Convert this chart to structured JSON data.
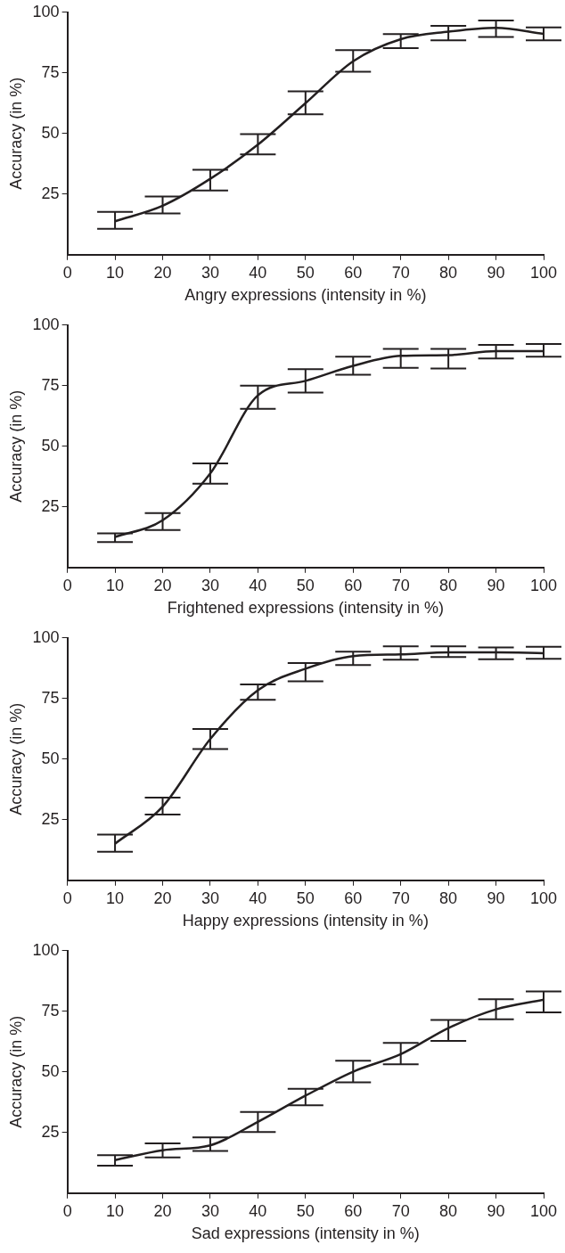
{
  "chart_data": [
    {
      "type": "line",
      "xlabel": "Angry expressions (intensity in %)",
      "ylabel": "Accuracy (in %)",
      "x": [
        10,
        20,
        30,
        40,
        50,
        60,
        70,
        80,
        90,
        100
      ],
      "xlim": [
        0,
        100
      ],
      "xticks": [
        0,
        10,
        20,
        30,
        40,
        50,
        60,
        70,
        80,
        90,
        100
      ],
      "ylim": [
        0,
        100
      ],
      "yticks": [
        25,
        50,
        75,
        100
      ],
      "grid": false,
      "legend": false,
      "marker": "none",
      "line_style": "solid",
      "series": [
        {
          "color": "#231f20",
          "values": [
            13.8,
            20.2,
            31.3,
            45.4,
            62.5,
            79.8,
            88.9,
            92,
            93.6,
            91.1
          ],
          "errors": [
            [
              10.7,
              17.7
            ],
            [
              17,
              24
            ],
            [
              26.5,
              35
            ],
            [
              41.4,
              49.7
            ],
            [
              57.9,
              67.4
            ],
            [
              75.5,
              84.4
            ],
            [
              85.2,
              91
            ],
            [
              88.4,
              94.4
            ],
            [
              89.8,
              96.6
            ],
            [
              88.4,
              93.8
            ]
          ]
        }
      ]
    },
    {
      "type": "line",
      "xlabel": "Frightened expressions (intensity in %)",
      "ylabel": "Accuracy (in %)",
      "x": [
        10,
        20,
        30,
        40,
        50,
        60,
        70,
        80,
        90,
        100
      ],
      "xlim": [
        0,
        100
      ],
      "xticks": [
        0,
        10,
        20,
        30,
        40,
        50,
        60,
        70,
        80,
        90,
        100
      ],
      "ylim": [
        0,
        100
      ],
      "yticks": [
        25,
        50,
        75,
        100
      ],
      "grid": false,
      "legend": false,
      "marker": "none",
      "line_style": "solid",
      "series": [
        {
          "color": "#231f20",
          "values": [
            12.6,
            19.5,
            38.8,
            71,
            77,
            83.2,
            87.3,
            87.6,
            89.3,
            89.3
          ],
          "errors": [
            [
              10.5,
              14.1
            ],
            [
              15.5,
              22.4
            ],
            [
              34.6,
              42.9
            ],
            [
              65.5,
              75
            ],
            [
              72.2,
              81.8
            ],
            [
              79.5,
              87
            ],
            [
              82.4,
              90.2
            ],
            [
              82.1,
              90.2
            ],
            [
              86.2,
              91.8
            ],
            [
              87,
              92.2
            ]
          ]
        }
      ]
    },
    {
      "type": "line",
      "xlabel": "Happy expressions (intensity in %)",
      "ylabel": "Accuracy (in %)",
      "x": [
        10,
        20,
        30,
        40,
        50,
        60,
        70,
        80,
        90,
        100
      ],
      "xlim": [
        0,
        100
      ],
      "xticks": [
        0,
        10,
        20,
        30,
        40,
        50,
        60,
        70,
        80,
        90,
        100
      ],
      "ylim": [
        0,
        100
      ],
      "yticks": [
        25,
        50,
        75,
        100
      ],
      "grid": false,
      "legend": false,
      "marker": "none",
      "line_style": "solid",
      "series": [
        {
          "color": "#231f20",
          "values": [
            15.1,
            30.4,
            58.3,
            78.4,
            87.3,
            92.5,
            93.2,
            94,
            94,
            93.7
          ],
          "errors": [
            [
              11.8,
              18.9
            ],
            [
              27.1,
              34.1
            ],
            [
              54.2,
              62.4
            ],
            [
              74.5,
              80.8
            ],
            [
              82.1,
              89.6
            ],
            [
              88.8,
              94.3
            ],
            [
              91,
              96.5
            ],
            [
              92.1,
              96.5
            ],
            [
              91.2,
              96.1
            ],
            [
              91.4,
              96.3
            ]
          ]
        }
      ]
    },
    {
      "type": "line",
      "xlabel": "Sad expressions (intensity in %)",
      "ylabel": "Accuracy (in %)",
      "x": [
        10,
        20,
        30,
        40,
        50,
        60,
        70,
        80,
        90,
        100
      ],
      "xlim": [
        0,
        100
      ],
      "xticks": [
        0,
        10,
        20,
        30,
        40,
        50,
        60,
        70,
        80,
        90,
        100
      ],
      "ylim": [
        0,
        100
      ],
      "yticks": [
        25,
        50,
        75,
        100
      ],
      "grid": false,
      "legend": false,
      "marker": "none",
      "line_style": "solid",
      "series": [
        {
          "color": "#231f20",
          "values": [
            13.6,
            17.7,
            19.7,
            29.4,
            40.2,
            50.1,
            57.3,
            68.1,
            75.8,
            79.8
          ],
          "errors": [
            [
              11.3,
              15.6
            ],
            [
              14.7,
              20.5
            ],
            [
              17.4,
              23
            ],
            [
              25.2,
              33.5
            ],
            [
              36.2,
              43
            ],
            [
              45.7,
              54.6
            ],
            [
              53.1,
              62
            ],
            [
              62.8,
              71.4
            ],
            [
              71.7,
              80
            ],
            [
              74.6,
              83.2
            ]
          ]
        }
      ]
    }
  ]
}
